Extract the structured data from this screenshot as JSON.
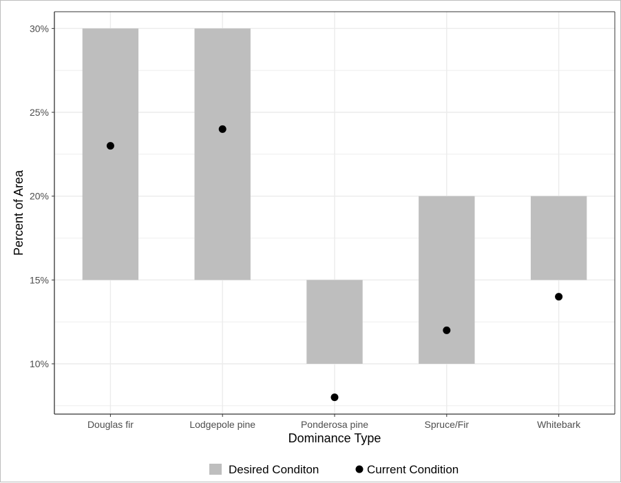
{
  "chart_data": {
    "type": "range-bar-with-points",
    "categories": [
      "Douglas fir",
      "Lodgepole pine",
      "Ponderosa pine",
      "Spruce/Fir",
      "Whitebark"
    ],
    "series": [
      {
        "name": "Desired Conditon",
        "type": "range",
        "low": [
          15,
          15,
          10,
          10,
          15
        ],
        "high": [
          30,
          30,
          15,
          20,
          20
        ]
      },
      {
        "name": "Current Condition",
        "type": "point",
        "values": [
          23,
          24,
          8,
          12,
          14
        ]
      }
    ],
    "xlabel": "Dominance Type",
    "ylabel": "Percent of Area",
    "ylim": [
      7,
      31
    ],
    "yticks": [
      10,
      15,
      20,
      25,
      30
    ],
    "ytick_labels": [
      "10%",
      "15%",
      "20%",
      "25%",
      "30%"
    ],
    "grid": true,
    "legend_position": "bottom",
    "colors": {
      "range": "#bebebe",
      "point": "#000000",
      "grid": "#ebebeb",
      "axis": "#333333"
    }
  }
}
